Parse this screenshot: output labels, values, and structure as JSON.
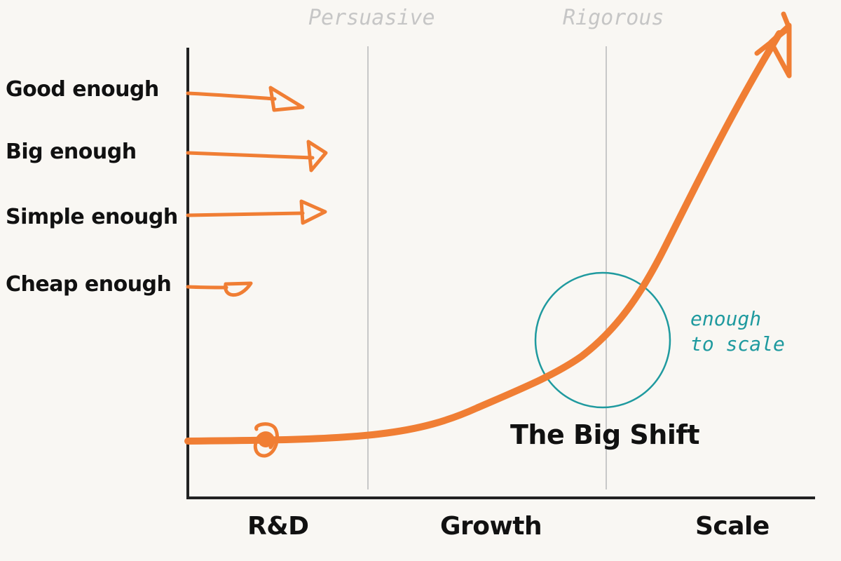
{
  "criteria": [
    {
      "label": "Good enough"
    },
    {
      "label": "Big enough"
    },
    {
      "label": "Simple enough"
    },
    {
      "label": "Cheap enough"
    }
  ],
  "phases": [
    {
      "label": "R&D"
    },
    {
      "label": "Growth"
    },
    {
      "label": "Scale"
    }
  ],
  "stage_qualities": [
    {
      "label": "Persuasive"
    },
    {
      "label": "Rigorous"
    }
  ],
  "shift": {
    "label": "The Big Shift",
    "note_line1": "enough",
    "note_line2": "to scale"
  },
  "colors": {
    "background": "#f9f7f3",
    "curve": "#f07e34",
    "axis": "#222222",
    "divider": "#c8c8c8",
    "circle": "#1f9a9f",
    "faded_text": "#c6c6c6"
  }
}
